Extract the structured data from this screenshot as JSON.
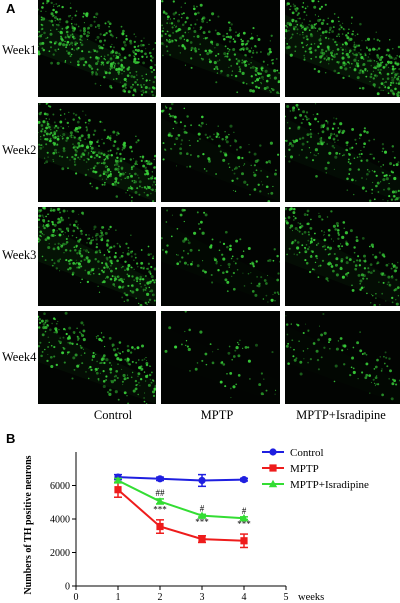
{
  "figure": {
    "panel_a_label": "A",
    "panel_b_label": "B",
    "rows": [
      {
        "label": "Week1",
        "density": [
          1.0,
          0.75,
          0.95
        ]
      },
      {
        "label": "Week2",
        "density": [
          0.95,
          0.35,
          0.55
        ]
      },
      {
        "label": "Week3",
        "density": [
          0.95,
          0.3,
          0.6
        ]
      },
      {
        "label": "Week4",
        "density": [
          0.6,
          0.15,
          0.25
        ]
      }
    ],
    "columns": [
      "Control",
      "MPTP",
      "MPTP+Isradipine"
    ],
    "stain_color": "#39d13a"
  },
  "chart_data": {
    "type": "line",
    "ylabel": "Numbers of TH positive neurons",
    "xlabel": "weeks",
    "xlim": [
      0,
      5
    ],
    "ylim": [
      0,
      8000
    ],
    "xticks": [
      0,
      1,
      2,
      3,
      4,
      5
    ],
    "yticks": [
      0,
      2000,
      4000,
      6000
    ],
    "x": [
      1,
      2,
      3,
      4
    ],
    "legend_position": "top-right",
    "series": [
      {
        "name": "Control",
        "color": "#1f1fe0",
        "marker": "circle",
        "values": [
          6500,
          6400,
          6300,
          6350
        ],
        "errors": [
          150,
          100,
          350,
          80
        ],
        "annotations": [
          "",
          "",
          "",
          ""
        ]
      },
      {
        "name": "MPTP",
        "color": "#ee1c1c",
        "marker": "square",
        "values": [
          5750,
          3550,
          2800,
          2700
        ],
        "errors": [
          450,
          400,
          200,
          400
        ],
        "annotations": [
          "",
          "***",
          "***",
          "***"
        ]
      },
      {
        "name": "MPTP+Isradipine",
        "color": "#33dd33",
        "marker": "triangle",
        "values": [
          6300,
          5050,
          4200,
          4050
        ],
        "errors": [
          120,
          150,
          80,
          80
        ],
        "annotations": [
          "",
          "##",
          "#",
          "#"
        ]
      }
    ]
  }
}
